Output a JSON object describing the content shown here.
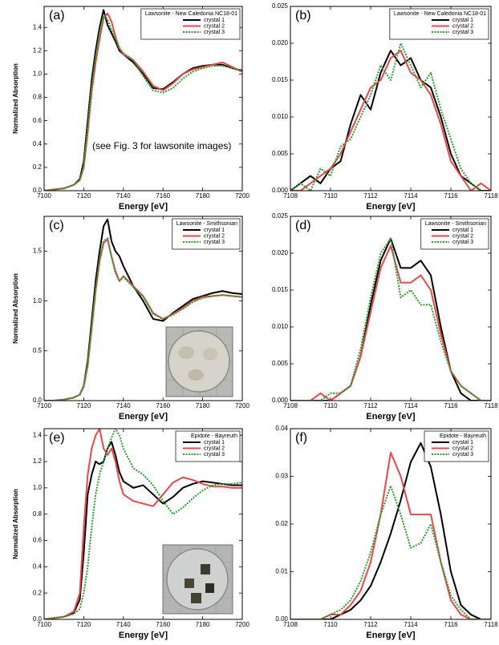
{
  "chart_data": [
    {
      "type": "line",
      "panel_label": "(a)",
      "legend_title": "Lawsonite - New Caledonia NC18-01",
      "annotation": "(see Fig. 3 for lawsonite images)",
      "xlabel": "Energy [eV]",
      "ylabel": "Normalized Absorption",
      "x": [
        7100,
        7105,
        7110,
        7115,
        7118,
        7120,
        7122,
        7124,
        7126,
        7128,
        7130,
        7132,
        7134,
        7136,
        7138,
        7140,
        7145,
        7150,
        7155,
        7160,
        7165,
        7170,
        7175,
        7180,
        7185,
        7190,
        7195,
        7200
      ],
      "series": [
        {
          "name": "crystal 1",
          "color": "#000000",
          "line_style": "solid",
          "values": [
            0,
            0.01,
            0.02,
            0.05,
            0.1,
            0.25,
            0.6,
            0.95,
            1.2,
            1.4,
            1.55,
            1.42,
            1.35,
            1.28,
            1.2,
            1.17,
            1.1,
            1.0,
            0.88,
            0.87,
            0.93,
            1.0,
            1.05,
            1.07,
            1.08,
            1.08,
            1.05,
            1.03
          ]
        },
        {
          "name": "crystal 2",
          "color": "#e8474b",
          "line_style": "solid",
          "values": [
            0,
            0.01,
            0.02,
            0.05,
            0.09,
            0.2,
            0.5,
            0.85,
            1.1,
            1.3,
            1.48,
            1.52,
            1.45,
            1.32,
            1.22,
            1.17,
            1.12,
            1.02,
            0.9,
            0.86,
            0.92,
            1.0,
            1.04,
            1.06,
            1.08,
            1.1,
            1.06,
            1.02
          ]
        },
        {
          "name": "crystal 3",
          "color": "#2a9d2a",
          "line_style": "dotted",
          "values": [
            0,
            0.01,
            0.02,
            0.05,
            0.09,
            0.22,
            0.55,
            0.9,
            1.15,
            1.35,
            1.5,
            1.47,
            1.38,
            1.3,
            1.22,
            1.18,
            1.12,
            0.98,
            0.86,
            0.84,
            0.88,
            0.96,
            1.02,
            1.05,
            1.07,
            1.07,
            1.05,
            1.02
          ]
        }
      ],
      "xlim": [
        7100,
        7200
      ],
      "xticks": [
        7100,
        7120,
        7140,
        7160,
        7180,
        7200
      ],
      "ylim": [
        0,
        1.58
      ],
      "yticks": [
        {
          "value": 0,
          "label": "0.0"
        },
        0.2,
        0.4,
        0.6,
        0.8,
        {
          "value": 1,
          "label": "1.0"
        },
        1.2,
        1.4
      ]
    },
    {
      "type": "line",
      "panel_label": "(b)",
      "legend_title": "Lawsonite - New Caledonia NC18-01",
      "xlabel": "Energy [eV]",
      "x": [
        7108,
        7108.5,
        7109,
        7109.5,
        7110,
        7110.5,
        7111,
        7111.5,
        7112,
        7112.5,
        7113,
        7113.5,
        7114,
        7114.5,
        7115,
        7115.5,
        7116,
        7116.5,
        7117,
        7117.5,
        7118
      ],
      "series": [
        {
          "name": "crystal 1",
          "color": "#000000",
          "line_style": "solid",
          "values": [
            0,
            0.001,
            0.002,
            0.001,
            0.003,
            0.004,
            0.009,
            0.013,
            0.011,
            0.016,
            0.019,
            0.017,
            0.018,
            0.015,
            0.014,
            0.01,
            0.005,
            0.002,
            0.001,
            0,
            0
          ]
        },
        {
          "name": "crystal 2",
          "color": "#e8474b",
          "line_style": "solid",
          "values": [
            0,
            0,
            0.001,
            0.002,
            0.003,
            0.005,
            0.008,
            0.011,
            0.014,
            0.015,
            0.018,
            0.019,
            0.016,
            0.015,
            0.013,
            0.009,
            0.004,
            0.002,
            0,
            0.001,
            0
          ]
        },
        {
          "name": "crystal 3",
          "color": "#2a9d2a",
          "line_style": "dotted",
          "values": [
            0,
            0.001,
            0,
            0.003,
            0.002,
            0.006,
            0.007,
            0.01,
            0.013,
            0.017,
            0.015,
            0.02,
            0.017,
            0.014,
            0.016,
            0.011,
            0.007,
            0.003,
            0.001,
            0,
            0
          ]
        }
      ],
      "xlim": [
        7108,
        7118
      ],
      "xticks": [
        7108,
        7110,
        7112,
        7114,
        7116,
        7118
      ],
      "ylim": [
        0,
        0.025
      ],
      "yticks": [
        {
          "value": 0,
          "label": "0.000"
        },
        {
          "value": 0.005,
          "label": "0.005"
        },
        {
          "value": 0.01,
          "label": "0.010"
        },
        {
          "value": 0.015,
          "label": "0.015"
        },
        {
          "value": 0.02,
          "label": "0.020"
        },
        {
          "value": 0.025,
          "label": "0.025"
        }
      ]
    },
    {
      "type": "line",
      "panel_label": "(c)",
      "legend_title": "Lawsonite - Smithsonian",
      "xlabel": "Energy [eV]",
      "ylabel": "Normalized Absorption",
      "x": [
        7100,
        7105,
        7110,
        7115,
        7118,
        7120,
        7122,
        7124,
        7126,
        7128,
        7130,
        7132,
        7134,
        7136,
        7138,
        7140,
        7145,
        7150,
        7155,
        7160,
        7165,
        7170,
        7175,
        7180,
        7185,
        7190,
        7195,
        7200
      ],
      "series": [
        {
          "name": "crystal 1",
          "color": "#000000",
          "line_style": "solid",
          "values": [
            0,
            0,
            0.01,
            0.03,
            0.06,
            0.15,
            0.4,
            0.8,
            1.2,
            1.5,
            1.75,
            1.82,
            1.6,
            1.5,
            1.45,
            1.35,
            1.15,
            1.0,
            0.82,
            0.8,
            0.88,
            0.95,
            1.02,
            1.05,
            1.08,
            1.1,
            1.08,
            1.07
          ]
        },
        {
          "name": "crystal 2",
          "color": "#e8474b",
          "line_style": "solid",
          "values": [
            0,
            0,
            0.01,
            0.03,
            0.06,
            0.14,
            0.35,
            0.72,
            1.1,
            1.4,
            1.58,
            1.62,
            1.45,
            1.3,
            1.2,
            1.25,
            1.15,
            1.05,
            0.88,
            0.82,
            0.87,
            0.93,
            1.0,
            1.04,
            1.05,
            1.06,
            1.05,
            1.04
          ]
        },
        {
          "name": "crystal 3",
          "color": "#2a9d2a",
          "line_style": "dotted",
          "values": [
            0,
            0,
            0.01,
            0.03,
            0.06,
            0.15,
            0.37,
            0.74,
            1.12,
            1.42,
            1.6,
            1.63,
            1.44,
            1.28,
            1.2,
            1.24,
            1.14,
            1.04,
            0.87,
            0.82,
            0.86,
            0.92,
            0.99,
            1.03,
            1.05,
            1.06,
            1.05,
            1.04
          ]
        }
      ],
      "xlim": [
        7100,
        7200
      ],
      "xticks": [
        7100,
        7120,
        7140,
        7160,
        7180,
        7200
      ],
      "ylim": [
        0,
        1.85
      ],
      "yticks": [
        {
          "value": 0,
          "label": "0.0"
        },
        0.5,
        {
          "value": 1,
          "label": "1.0"
        },
        1.5
      ]
    },
    {
      "type": "line",
      "panel_label": "(d)",
      "legend_title": "Lawsonite - Smithsonian",
      "xlabel": "Energy [eV]",
      "x": [
        7108,
        7108.5,
        7109,
        7109.5,
        7110,
        7110.5,
        7111,
        7111.5,
        7112,
        7112.5,
        7113,
        7113.5,
        7114,
        7114.5,
        7115,
        7115.5,
        7116,
        7116.5,
        7117,
        7117.5,
        7118
      ],
      "series": [
        {
          "name": "crystal 1",
          "color": "#000000",
          "line_style": "solid",
          "values": [
            0,
            0,
            0,
            0,
            0,
            0.001,
            0.002,
            0.006,
            0.013,
            0.019,
            0.022,
            0.018,
            0.018,
            0.019,
            0.017,
            0.01,
            0.004,
            0.001,
            0,
            0,
            0
          ]
        },
        {
          "name": "crystal 2",
          "color": "#e8474b",
          "line_style": "solid",
          "values": [
            0,
            0,
            0,
            0.001,
            0,
            0.001,
            0.002,
            0.006,
            0.012,
            0.018,
            0.021,
            0.016,
            0.016,
            0.017,
            0.015,
            0.009,
            0.004,
            0.002,
            0.001,
            0,
            0
          ]
        },
        {
          "name": "crystal 3",
          "color": "#2a9d2a",
          "line_style": "dotted",
          "values": [
            0,
            0,
            0,
            0,
            0.001,
            0.001,
            0.002,
            0.007,
            0.014,
            0.02,
            0.022,
            0.014,
            0.015,
            0.013,
            0.013,
            0.008,
            0.004,
            0.002,
            0.001,
            0,
            0
          ]
        }
      ],
      "xlim": [
        7108,
        7118
      ],
      "xticks": [
        7108,
        7110,
        7112,
        7114,
        7116,
        7118
      ],
      "ylim": [
        0,
        0.025
      ],
      "yticks": [
        {
          "value": 0,
          "label": "0.000"
        },
        {
          "value": 0.005,
          "label": "0.005"
        },
        {
          "value": 0.01,
          "label": "0.010"
        },
        {
          "value": 0.015,
          "label": "0.015"
        },
        {
          "value": 0.02,
          "label": "0.020"
        },
        {
          "value": 0.025,
          "label": "0.025"
        }
      ]
    },
    {
      "type": "line",
      "panel_label": "(e)",
      "legend_title": "Epidote - Bayreuth",
      "xlabel": "Energy [eV]",
      "ylabel": "Normalized Absorption",
      "x": [
        7100,
        7105,
        7110,
        7115,
        7118,
        7120,
        7122,
        7124,
        7126,
        7128,
        7130,
        7132,
        7134,
        7136,
        7138,
        7140,
        7145,
        7150,
        7155,
        7160,
        7165,
        7170,
        7175,
        7180,
        7185,
        7190,
        7195,
        7200
      ],
      "series": [
        {
          "name": "crystal 1",
          "color": "#000000",
          "line_style": "solid",
          "values": [
            0,
            0.01,
            0.02,
            0.05,
            0.15,
            0.5,
            0.95,
            1.1,
            1.2,
            1.18,
            1.2,
            1.3,
            1.35,
            1.25,
            1.12,
            1.05,
            1.0,
            1.02,
            0.95,
            0.88,
            0.93,
            1.0,
            1.03,
            1.05,
            1.04,
            1.03,
            1.02,
            1.02
          ]
        },
        {
          "name": "crystal 2",
          "color": "#e8474b",
          "line_style": "solid",
          "values": [
            0,
            0.01,
            0.02,
            0.06,
            0.2,
            0.7,
            1.1,
            1.3,
            1.4,
            1.45,
            1.3,
            1.25,
            1.3,
            1.2,
            1.05,
            0.95,
            0.9,
            0.88,
            0.86,
            0.95,
            1.04,
            1.08,
            1.06,
            1.03,
            1.01,
            1.01,
            1.0,
            1.0
          ]
        },
        {
          "name": "crystal 3",
          "color": "#2a9d2a",
          "line_style": "dotted",
          "values": [
            0,
            0.01,
            0.02,
            0.04,
            0.08,
            0.2,
            0.4,
            0.7,
            0.95,
            1.1,
            1.2,
            1.3,
            1.38,
            1.45,
            1.4,
            1.3,
            1.15,
            1.1,
            1.02,
            0.9,
            0.8,
            0.85,
            0.92,
            0.98,
            1.02,
            1.03,
            1.03,
            1.04
          ]
        }
      ],
      "xlim": [
        7100,
        7200
      ],
      "xticks": [
        7100,
        7120,
        7140,
        7160,
        7180,
        7200
      ],
      "ylim": [
        0,
        1.45
      ],
      "yticks": [
        {
          "value": 0,
          "label": "0.0"
        },
        0.2,
        0.4,
        0.6,
        0.8,
        {
          "value": 1,
          "label": "1.0"
        },
        1.2,
        1.4
      ]
    },
    {
      "type": "line",
      "panel_label": "(f)",
      "legend_title": "Epidote - Bayreuth",
      "xlabel": "Energy [eV]",
      "x": [
        7108,
        7108.5,
        7109,
        7109.5,
        7110,
        7110.5,
        7111,
        7111.5,
        7112,
        7112.5,
        7113,
        7113.5,
        7114,
        7114.5,
        7115,
        7115.5,
        7116,
        7116.5,
        7117,
        7117.5,
        7118
      ],
      "series": [
        {
          "name": "crystal 1",
          "color": "#000000",
          "line_style": "solid",
          "values": [
            0,
            0,
            0,
            0,
            0,
            0.001,
            0.002,
            0.004,
            0.007,
            0.012,
            0.018,
            0.025,
            0.033,
            0.037,
            0.032,
            0.022,
            0.01,
            0.003,
            0.001,
            0,
            0
          ]
        },
        {
          "name": "crystal 2",
          "color": "#e8474b",
          "line_style": "solid",
          "values": [
            0,
            0,
            0,
            0,
            0.001,
            0.001,
            0.003,
            0.006,
            0.012,
            0.022,
            0.035,
            0.03,
            0.022,
            0.022,
            0.022,
            0.012,
            0.004,
            0.001,
            0,
            0,
            0
          ]
        },
        {
          "name": "crystal 3",
          "color": "#2a9d2a",
          "line_style": "dotted",
          "values": [
            0,
            0,
            0,
            0,
            0.001,
            0.002,
            0.004,
            0.008,
            0.014,
            0.022,
            0.028,
            0.022,
            0.015,
            0.016,
            0.02,
            0.012,
            0.005,
            0.002,
            0,
            0,
            0
          ]
        }
      ],
      "xlim": [
        7108,
        7118
      ],
      "xticks": [
        7108,
        7110,
        7112,
        7114,
        7116,
        7118
      ],
      "ylim": [
        0,
        0.04
      ],
      "yticks": [
        {
          "value": 0,
          "label": "0.00"
        },
        {
          "value": 0.01,
          "label": "0.01"
        },
        {
          "value": 0.02,
          "label": "0.02"
        },
        {
          "value": 0.03,
          "label": "0.03"
        },
        {
          "value": 0.04,
          "label": "0.04"
        }
      ]
    }
  ]
}
